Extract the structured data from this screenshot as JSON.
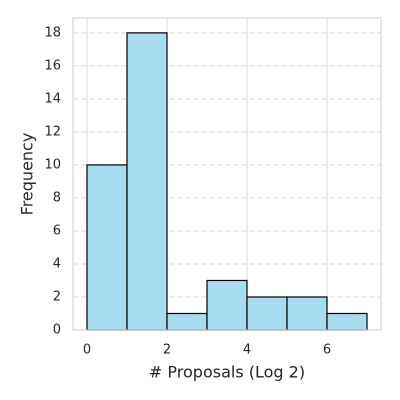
{
  "chart_data": {
    "type": "histogram",
    "xlabel": "# Proposals (Log 2)",
    "ylabel": "Frequency",
    "bins": [
      0,
      1,
      2,
      3,
      4,
      5,
      6,
      7
    ],
    "values": [
      10,
      18,
      1,
      3,
      2,
      2,
      1
    ],
    "color": "#a8dcf0",
    "edgecolor": "#000000",
    "xlim": [
      -0.35,
      7.35
    ],
    "xticks": [
      0,
      2,
      4,
      6
    ],
    "ylim": [
      0,
      18.9
    ],
    "yticks": [
      0,
      2,
      4,
      6,
      8,
      10,
      12,
      14,
      16,
      18
    ],
    "grid": true
  }
}
